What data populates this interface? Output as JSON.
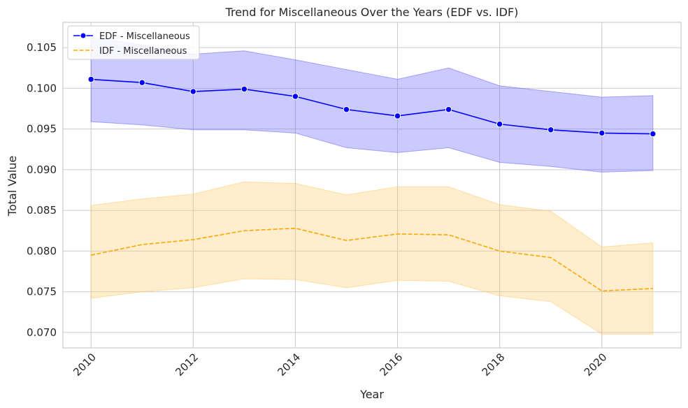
{
  "chart_data": {
    "type": "line",
    "title": "Trend for Miscellaneous Over the Years (EDF vs. IDF)",
    "xlabel": "Year",
    "ylabel": "Total Value",
    "xlim": [
      2009.45,
      2021.55
    ],
    "ylim": [
      0.0681,
      0.1081
    ],
    "x_ticks": [
      2010,
      2012,
      2014,
      2016,
      2018,
      2020
    ],
    "y_ticks": [
      0.07,
      0.075,
      0.08,
      0.085,
      0.09,
      0.095,
      0.1,
      0.105
    ],
    "y_tick_labels": [
      "0.070",
      "0.075",
      "0.080",
      "0.085",
      "0.090",
      "0.095",
      "0.100",
      "0.105"
    ],
    "grid": true,
    "legend_position": "top-left",
    "x": [
      2010,
      2011,
      2012,
      2013,
      2014,
      2015,
      2016,
      2017,
      2018,
      2019,
      2020,
      2021
    ],
    "series": [
      {
        "name": "EDF - Miscellaneous",
        "color": "#0000ff",
        "band_color": "#6666ff",
        "line_style": "solid",
        "marker": "circle",
        "values": [
          0.1011,
          0.1007,
          0.0996,
          0.0999,
          0.099,
          0.0974,
          0.0966,
          0.0974,
          0.0956,
          0.0949,
          0.0945,
          0.0944
        ],
        "lower": [
          0.0959,
          0.0955,
          0.0949,
          0.0949,
          0.0945,
          0.0927,
          0.0921,
          0.0927,
          0.0909,
          0.0904,
          0.0897,
          0.0899
        ],
        "upper": [
          0.1063,
          0.1053,
          0.1042,
          0.1046,
          0.1035,
          0.1023,
          0.1011,
          0.1025,
          0.1003,
          0.0996,
          0.0989,
          0.0991
        ]
      },
      {
        "name": "IDF - Miscellaneous",
        "color": "#ffa500",
        "band_color": "#ffc966",
        "line_style": "dashed",
        "marker": "none",
        "values": [
          0.0795,
          0.0808,
          0.0814,
          0.0825,
          0.0828,
          0.0813,
          0.0821,
          0.082,
          0.08,
          0.0792,
          0.0751,
          0.0754
        ],
        "lower": [
          0.0742,
          0.075,
          0.0755,
          0.0766,
          0.0765,
          0.0755,
          0.0764,
          0.0763,
          0.0745,
          0.0738,
          0.0698,
          0.0698
        ],
        "upper": [
          0.0856,
          0.0864,
          0.087,
          0.0885,
          0.0883,
          0.0869,
          0.0879,
          0.0879,
          0.0857,
          0.0849,
          0.0805,
          0.081
        ]
      }
    ]
  }
}
